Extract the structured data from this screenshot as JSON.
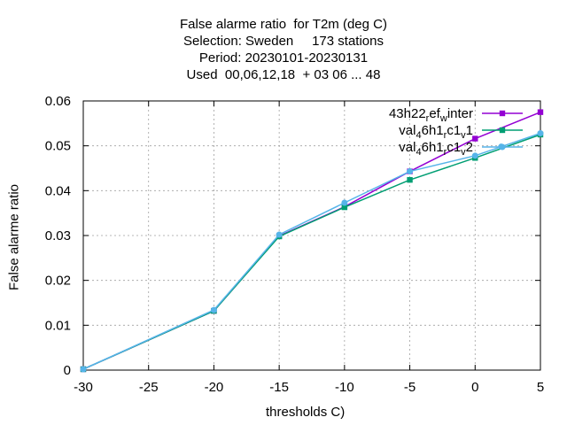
{
  "chart_data": {
    "type": "line",
    "title_lines": [
      "False alarme ratio  for T2m (deg C)",
      "Selection: Sweden     173 stations",
      "Period: 20230101-20230131",
      "Used  00,06,12,18  + 03 06 ... 48"
    ],
    "xlabel": "thresholds C)",
    "ylabel": "False alarme ratio",
    "xlim": [
      -30,
      5
    ],
    "ylim": [
      0,
      0.06
    ],
    "x_ticks": [
      "-30",
      "-25",
      "-20",
      "-15",
      "-10",
      "-5",
      "0",
      "5"
    ],
    "x_tick_values": [
      -30,
      -25,
      -20,
      -15,
      -10,
      -5,
      0,
      5
    ],
    "y_ticks": [
      "0",
      "0.01",
      "0.02",
      "0.03",
      "0.04",
      "0.05",
      "0.06"
    ],
    "y_tick_values": [
      0,
      0.01,
      0.02,
      0.03,
      0.04,
      0.05,
      0.06
    ],
    "grid": true,
    "legend_position": "top-right",
    "series": [
      {
        "name": "43h22_ref_winter",
        "legend_parts": [
          [
            "43h22",
            "n"
          ],
          [
            "r",
            "sub"
          ],
          [
            "ef",
            "n"
          ],
          [
            "w",
            "sub"
          ],
          [
            "inter",
            "n"
          ]
        ],
        "color": "#9400d3",
        "marker": "square",
        "x": [
          -30,
          -20,
          -15,
          -10,
          -5,
          0,
          5
        ],
        "y": [
          0.0002,
          0.0132,
          0.0299,
          0.0364,
          0.0443,
          0.0516,
          0.0575
        ]
      },
      {
        "name": "val_46h1_rc1_v1",
        "legend_parts": [
          [
            "val",
            "n"
          ],
          [
            "4",
            "sub"
          ],
          [
            "6h1",
            "n"
          ],
          [
            "r",
            "sub"
          ],
          [
            "c1",
            "n"
          ],
          [
            "v",
            "sub"
          ],
          [
            "1",
            "n"
          ]
        ],
        "color": "#009e73",
        "marker": "square",
        "x": [
          -30,
          -20,
          -15,
          -10,
          -5,
          0,
          5
        ],
        "y": [
          0.0002,
          0.0132,
          0.0298,
          0.0363,
          0.0424,
          0.0473,
          0.0525
        ]
      },
      {
        "name": "val_46h1_rc1_v2",
        "legend_parts": [
          [
            "val",
            "n"
          ],
          [
            "4",
            "sub"
          ],
          [
            "6h1",
            "n"
          ],
          [
            "r",
            "sub"
          ],
          [
            "c1",
            "n"
          ],
          [
            "v",
            "sub"
          ],
          [
            "2",
            "n"
          ]
        ],
        "color": "#56b4e9",
        "marker": "circle",
        "x": [
          -30,
          -20,
          -15,
          -10,
          -5,
          0,
          2,
          5
        ],
        "y": [
          0.0002,
          0.0134,
          0.0302,
          0.0373,
          0.0443,
          0.0478,
          0.0498,
          0.0528
        ]
      }
    ]
  }
}
